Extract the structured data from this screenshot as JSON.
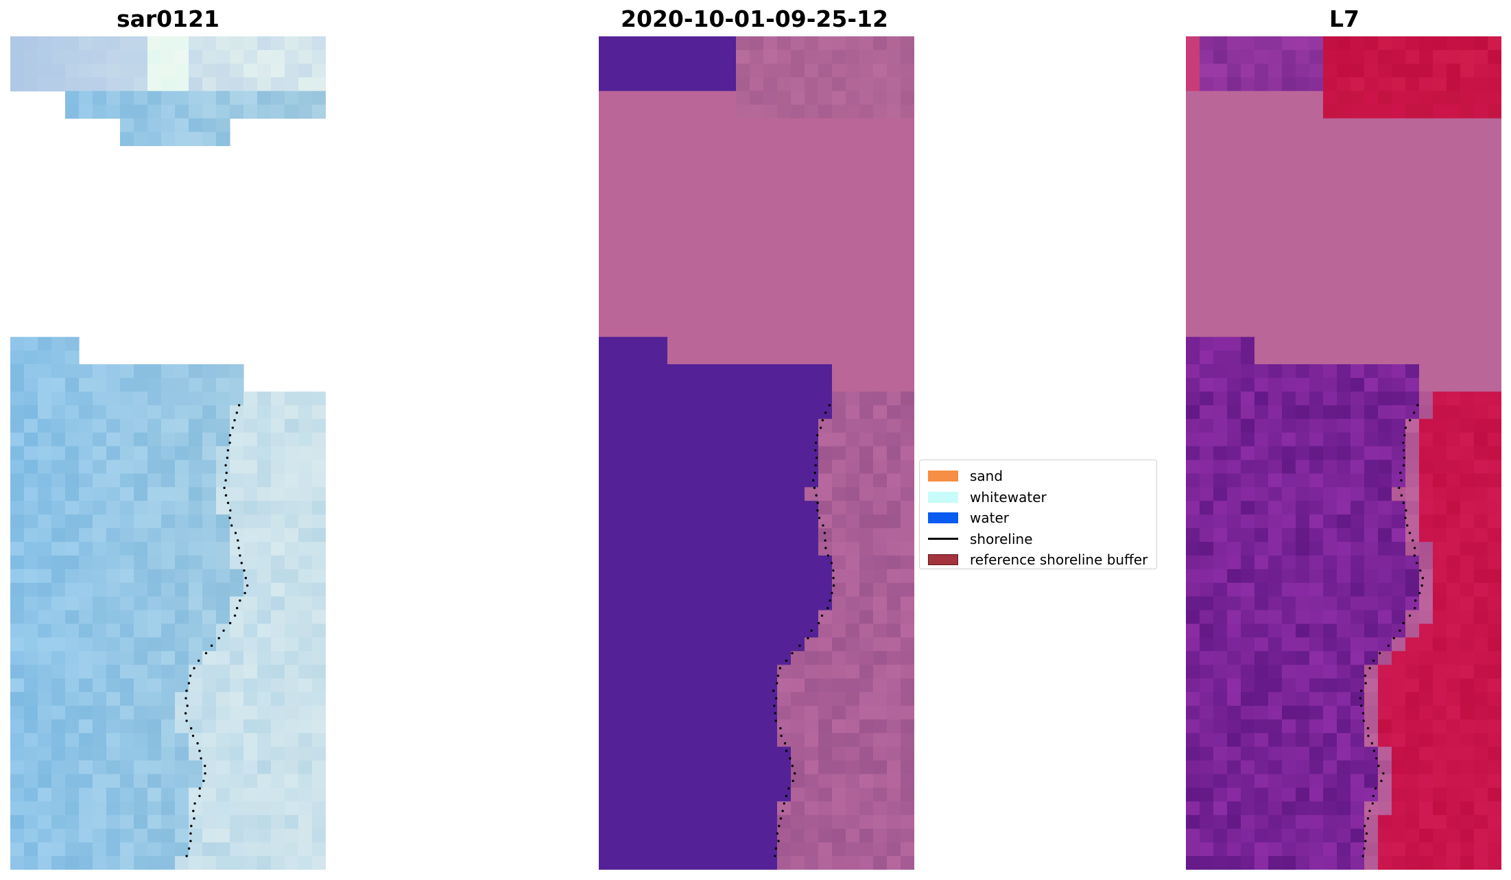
{
  "figure": {
    "panels": [
      {
        "title": "sar0121"
      },
      {
        "title": "2020-10-01-09-25-12"
      },
      {
        "title": "L7"
      }
    ],
    "legend": {
      "entries": [
        {
          "label": "sand",
          "kind": "patch",
          "color": "#f68e45"
        },
        {
          "label": "whitewater",
          "kind": "patch",
          "color": "#c8fcfa"
        },
        {
          "label": "water",
          "kind": "patch",
          "color": "#0a5cf0"
        },
        {
          "label": "shoreline",
          "kind": "line",
          "color": "#000000"
        },
        {
          "label": "reference shoreline buffer",
          "kind": "patch",
          "color": "#a3333c",
          "edge": "#5e1a1f"
        }
      ]
    }
  }
}
